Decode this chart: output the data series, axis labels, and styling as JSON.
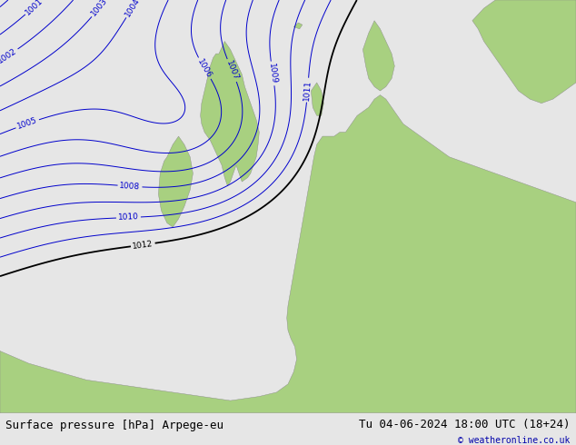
{
  "title_left": "Surface pressure [hPa] Arpege-eu",
  "title_right": "Tu 04-06-2024 18:00 UTC (18+24)",
  "credit": "© weatheronline.co.uk",
  "background_color": "#e6e6e6",
  "land_color": "#a8d080",
  "isobar_color_blue": "#0000cc",
  "isobar_color_red": "#cc0000",
  "isobar_color_black": "#000000",
  "bottom_bar_color": "#cccccc",
  "text_color_bottom": "#000000",
  "credit_color": "#0000aa",
  "font_size_bottom": 9,
  "font_size_labels": 7
}
